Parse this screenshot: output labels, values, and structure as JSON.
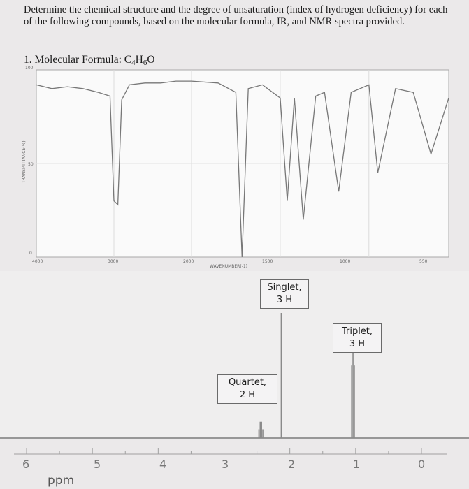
{
  "instructions": "Determine the chemical structure and the degree of unsaturation (index of hydrogen deficiency) for each of the following compounds, based on the molecular formula, IR, and NMR spectra provided.",
  "question_label": "1. Molecular Formula: ",
  "formula": {
    "c": "C",
    "c_n": "4",
    "h": "H",
    "h_n": "6",
    "o": "O"
  },
  "ir": {
    "ylabel": "TRANSMITTANCE(%)",
    "xlabel": "WAVENUMBER(-1)",
    "y_ticks": [
      "100",
      "50",
      "0"
    ],
    "x_ticks": [
      "4000",
      "3000",
      "2000",
      "1500",
      "1000",
      "550"
    ]
  },
  "nmr": {
    "peaks": [
      {
        "label": "Singlet,",
        "sub": "3 H"
      },
      {
        "label": "Triplet,",
        "sub": "3 H"
      },
      {
        "label": "Quartet,",
        "sub": "2 H"
      }
    ],
    "x_ticks": [
      "6",
      "5",
      "4",
      "3",
      "2",
      "1",
      "0"
    ],
    "unit": "ppm"
  },
  "chart_data": [
    {
      "type": "line",
      "x": [
        4000,
        3800,
        3600,
        3400,
        3200,
        3050,
        3000,
        2950,
        2900,
        2800,
        2600,
        2400,
        2200,
        2000,
        1850,
        1750,
        1715,
        1680,
        1600,
        1500,
        1460,
        1420,
        1370,
        1300,
        1250,
        1170,
        1100,
        1000,
        950,
        850,
        750,
        650,
        550
      ],
      "y": [
        92,
        90,
        91,
        90,
        88,
        86,
        30,
        28,
        84,
        92,
        93,
        93,
        94,
        94,
        93,
        88,
        0,
        90,
        92,
        85,
        30,
        85,
        20,
        86,
        88,
        35,
        88,
        92,
        45,
        90,
        88,
        55,
        85
      ],
      "xlabel": "WAVENUMBER(-1)",
      "ylabel": "TRANSMITTANCE(%)",
      "ylim": [
        0,
        100
      ],
      "xlim": [
        4000,
        550
      ]
    },
    {
      "type": "line",
      "x": [
        6,
        5,
        4,
        3,
        2.47,
        2.45,
        2.43,
        2.41,
        2.13,
        1.06,
        1.04,
        1.02,
        0
      ],
      "y": [
        0,
        0,
        0,
        0,
        7,
        13,
        13,
        7,
        100,
        58,
        82,
        58,
        0
      ],
      "xlabel": "ppm",
      "ylabel": "",
      "xlim": [
        6,
        0
      ]
    }
  ]
}
